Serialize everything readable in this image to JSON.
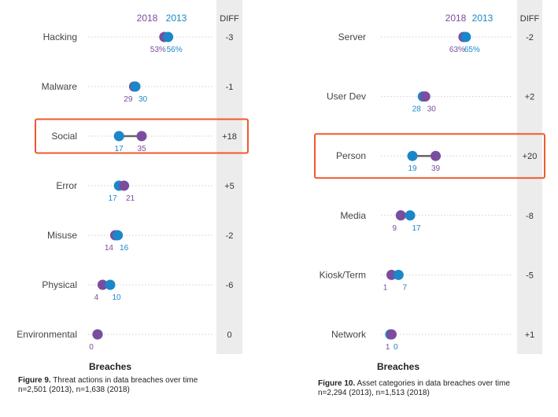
{
  "chart_data": [
    {
      "type": "dumbbell",
      "title": "Figure 9. Threat actions in data breaches over time",
      "figure_label": "Figure 9.",
      "figure_text": "Threat actions in data breaches over time",
      "subtitle": "n=2,501 (2013), n=1,638 (2018)",
      "xlabel": "Breaches",
      "diff_header": "DIFF",
      "legend": [
        "2018",
        "2013"
      ],
      "colors": {
        "2018": "#7b4d9e",
        "2013": "#1a87c9",
        "highlight": "#ee5a2c",
        "diff_band": "#ececec"
      },
      "xlim": [
        0,
        70
      ],
      "categories": [
        "Hacking",
        "Malware",
        "Social",
        "Error",
        "Misuse",
        "Physical",
        "Environmental"
      ],
      "series": [
        {
          "name": "2013",
          "values": [
            56,
            30,
            17,
            17,
            16,
            10,
            0
          ]
        },
        {
          "name": "2018",
          "values": [
            53,
            29,
            35,
            21,
            14,
            4,
            0
          ]
        }
      ],
      "labels_2013": [
        "56%",
        "30",
        "17",
        "17",
        "16",
        "10",
        ""
      ],
      "labels_2018": [
        "53%",
        "29",
        "35",
        "21",
        "14",
        "4",
        "0"
      ],
      "diff": [
        "-3",
        "-1",
        "+18",
        "+5",
        "-2",
        "-6",
        "0"
      ],
      "highlight_category": "Social"
    },
    {
      "type": "dumbbell",
      "title": "Figure 10. Asset categories in data breaches over time",
      "figure_label": "Figure 10.",
      "figure_text": "Asset categories in data breaches over time",
      "subtitle": "n=2,294 (2013), n=1,513 (2018)",
      "xlabel": "Breaches",
      "diff_header": "DIFF",
      "legend": [
        "2018",
        "2013"
      ],
      "colors": {
        "2018": "#7b4d9e",
        "2013": "#1a87c9",
        "highlight": "#ee5a2c",
        "diff_band": "#ececec"
      },
      "xlim": [
        0,
        80
      ],
      "categories": [
        "Server",
        "User Dev",
        "Person",
        "Media",
        "Kiosk/Term",
        "Network"
      ],
      "series": [
        {
          "name": "2013",
          "values": [
            65,
            28,
            19,
            17,
            7,
            0
          ]
        },
        {
          "name": "2018",
          "values": [
            63,
            30,
            39,
            9,
            1,
            1
          ]
        }
      ],
      "labels_2013": [
        "65%",
        "28",
        "19",
        "17",
        "7",
        "0"
      ],
      "labels_2018": [
        "63%",
        "30",
        "39",
        "9",
        "1",
        "1"
      ],
      "diff": [
        "-2",
        "+2",
        "+20",
        "-8",
        "-5",
        "+1"
      ],
      "highlight_category": "Person"
    }
  ]
}
